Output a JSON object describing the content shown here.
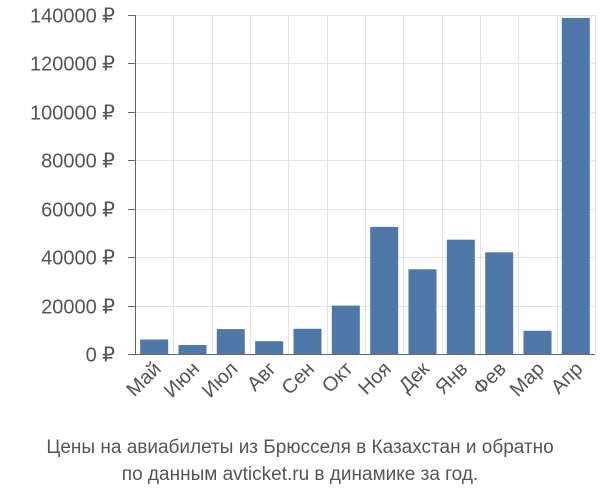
{
  "chart_data": {
    "type": "bar",
    "title": "",
    "xlabel": "",
    "ylabel": "",
    "currency": "₽",
    "categories": [
      "Май",
      "Июн",
      "Июл",
      "Авг",
      "Сен",
      "Окт",
      "Ноя",
      "Дек",
      "Янв",
      "Фев",
      "Мар",
      "Апр"
    ],
    "values": [
      6000,
      3700,
      10300,
      5300,
      10400,
      20000,
      52500,
      35000,
      47200,
      42000,
      9600,
      138800
    ],
    "ylim": [
      0,
      140000
    ],
    "yticks": [
      0,
      20000,
      40000,
      60000,
      80000,
      100000,
      120000,
      140000
    ],
    "grid": true,
    "legend": "none",
    "bar_color": "#4d78a8"
  },
  "caption": {
    "line1": "Цены на авиабилеты из Брюсселя в Казахстан и обратно",
    "line2": "по данным avticket.ru в динамике за год."
  }
}
